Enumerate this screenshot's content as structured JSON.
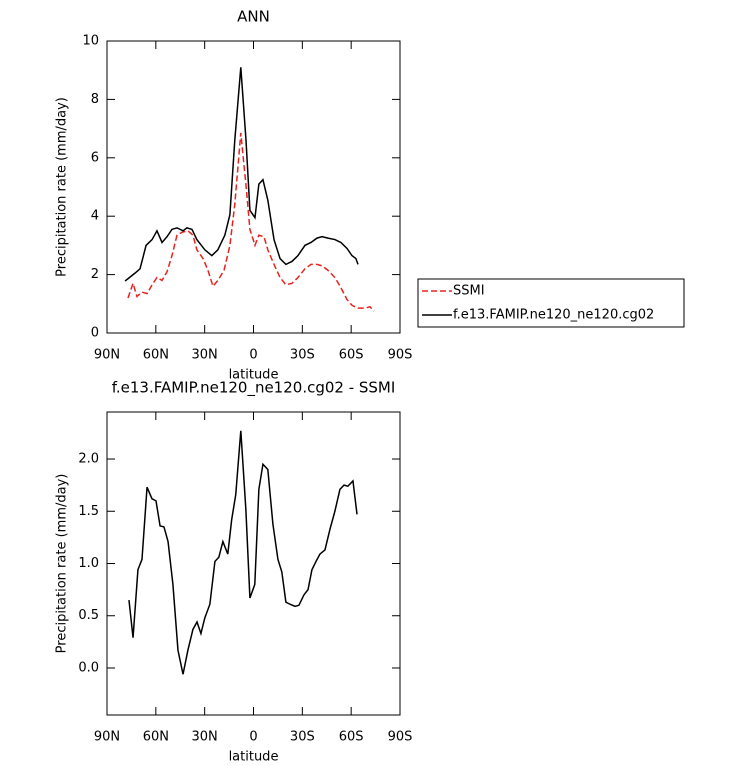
{
  "chart_data": [
    {
      "type": "line",
      "title": "ANN",
      "xlabel": "latitude",
      "ylabel": "Precipitation rate (mm/day)",
      "xlim": [
        90,
        -90
      ],
      "xticks": [
        {
          "value": 90,
          "label": "90N"
        },
        {
          "value": 60,
          "label": "60N"
        },
        {
          "value": 30,
          "label": "30N"
        },
        0,
        {
          "value": -30,
          "label": "30S"
        },
        {
          "value": -60,
          "label": "60S"
        },
        {
          "value": -90,
          "label": "90S"
        }
      ],
      "ylim": [
        0,
        10
      ],
      "yticks": [
        0,
        2,
        4,
        6,
        8,
        10
      ],
      "series": [
        {
          "name": "SSMI",
          "color": "#e8231d",
          "dashed": true,
          "x": [
            77.1,
            74.0,
            71.6,
            68.5,
            65.4,
            62.3,
            59.3,
            56.2,
            53.1,
            50.1,
            47.0,
            43.9,
            40.3,
            37.2,
            34.8,
            31.0,
            28.0,
            24.9,
            21.9,
            18.1,
            14.5,
            11.5,
            7.8,
            4.6,
            2.2,
            -0.9,
            -3.3,
            -6.4,
            -8.8,
            -12.6,
            -16.3,
            -19.9,
            -23.6,
            -27.3,
            -31.6,
            -35.3,
            -39.0,
            -42.1,
            -45.7,
            -50.0,
            -53.7,
            -57.4,
            -60.5,
            -64.2,
            -68.5,
            -71.5,
            -74.0
          ],
          "values": [
            1.2,
            1.7,
            1.25,
            1.4,
            1.35,
            1.65,
            1.9,
            1.8,
            2.1,
            2.65,
            3.35,
            3.45,
            3.5,
            3.35,
            2.85,
            2.55,
            2.15,
            1.6,
            1.8,
            2.15,
            3.0,
            4.4,
            6.85,
            5.05,
            3.55,
            3.0,
            3.35,
            3.3,
            2.85,
            2.35,
            1.9,
            1.65,
            1.7,
            1.9,
            2.2,
            2.35,
            2.35,
            2.3,
            2.15,
            1.9,
            1.55,
            1.15,
            0.95,
            0.85,
            0.85,
            0.9,
            0.75
          ]
        },
        {
          "name": "f.e13.FAMIP.ne120_ne120.cg02",
          "color": "#000000",
          "dashed": false,
          "x": [
            78.9,
            72.8,
            69.7,
            66.0,
            62.3,
            59.3,
            56.2,
            53.1,
            50.1,
            47.0,
            43.3,
            40.9,
            37.8,
            34.8,
            29.9,
            25.6,
            21.9,
            17.6,
            14.5,
            11.5,
            7.8,
            4.6,
            2.2,
            -0.9,
            -3.3,
            -5.8,
            -8.8,
            -12.6,
            -16.3,
            -19.9,
            -23.6,
            -27.3,
            -31.6,
            -35.3,
            -39.0,
            -42.1,
            -45.7,
            -50.0,
            -53.7,
            -57.4,
            -60.5,
            -62.9,
            -64.2
          ],
          "values": [
            1.78,
            2.05,
            2.2,
            3.0,
            3.2,
            3.5,
            3.1,
            3.3,
            3.55,
            3.6,
            3.5,
            3.6,
            3.55,
            3.2,
            2.85,
            2.65,
            2.85,
            3.35,
            4.05,
            6.6,
            9.1,
            6.6,
            4.2,
            3.95,
            5.1,
            5.25,
            4.55,
            3.2,
            2.55,
            2.35,
            2.45,
            2.65,
            3.0,
            3.1,
            3.25,
            3.3,
            3.25,
            3.2,
            3.1,
            2.9,
            2.65,
            2.55,
            2.35
          ]
        }
      ]
    },
    {
      "type": "line",
      "title": "f.e13.FAMIP.ne120_ne120.cg02 - SSMI",
      "xlabel": "latitude",
      "ylabel": "Precipitation rate (mm/day)",
      "xlim": [
        90,
        -90
      ],
      "xticks": [
        {
          "value": 90,
          "label": "90N"
        },
        {
          "value": 60,
          "label": "60N"
        },
        {
          "value": 30,
          "label": "30N"
        },
        0,
        {
          "value": -30,
          "label": "30S"
        },
        {
          "value": -60,
          "label": "60S"
        },
        {
          "value": -90,
          "label": "90S"
        }
      ],
      "ylim": [
        -0.45,
        2.45
      ],
      "yticks": [
        {
          "value": 0,
          "label": "0.0"
        },
        0.5,
        {
          "value": 1,
          "label": "1.0"
        },
        1.5,
        {
          "value": 2,
          "label": "2.0"
        }
      ],
      "series": [
        {
          "color": "#000000",
          "dashed": false,
          "x": [
            76.5,
            74.0,
            71.0,
            68.5,
            65.4,
            62.4,
            59.9,
            57.4,
            55.0,
            52.5,
            49.5,
            46.4,
            43.3,
            40.3,
            37.2,
            34.7,
            32.3,
            29.9,
            26.8,
            23.7,
            21.3,
            18.8,
            15.8,
            13.4,
            10.9,
            7.8,
            4.7,
            2.2,
            -0.8,
            -3.3,
            -5.8,
            -8.8,
            -11.9,
            -15.0,
            -17.4,
            -19.9,
            -22.4,
            -25.5,
            -27.9,
            -31.0,
            -33.5,
            -35.9,
            -38.4,
            -40.8,
            -43.9,
            -47.0,
            -50.0,
            -53.1,
            -55.6,
            -58.0,
            -61.1,
            -63.6
          ],
          "values": [
            0.65,
            0.29,
            0.94,
            1.04,
            1.73,
            1.62,
            1.6,
            1.36,
            1.35,
            1.21,
            0.8,
            0.17,
            -0.06,
            0.17,
            0.37,
            0.44,
            0.33,
            0.48,
            0.61,
            1.02,
            1.06,
            1.21,
            1.09,
            1.42,
            1.66,
            2.27,
            1.52,
            0.67,
            0.8,
            1.71,
            1.95,
            1.9,
            1.38,
            1.04,
            0.92,
            0.63,
            0.61,
            0.59,
            0.6,
            0.7,
            0.75,
            0.94,
            1.02,
            1.09,
            1.13,
            1.33,
            1.5,
            1.71,
            1.75,
            1.74,
            1.79,
            1.47
          ]
        }
      ]
    }
  ]
}
